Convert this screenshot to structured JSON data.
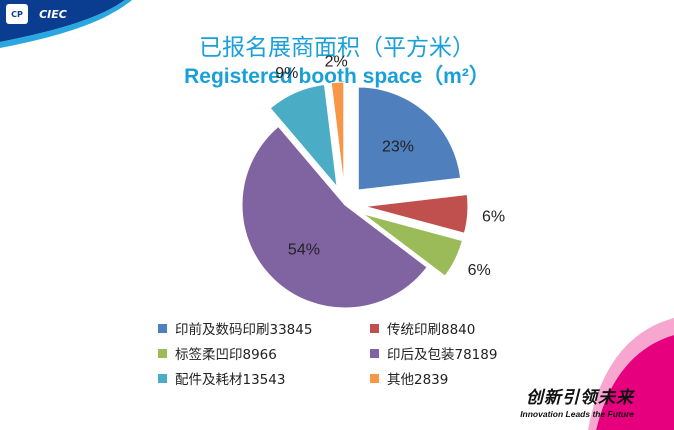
{
  "header": {
    "logo_left": "CP",
    "logo_right": "CIEC"
  },
  "colors": {
    "title": "#1aa0d9",
    "corner_blue": "#0a3d8f",
    "corner_magenta": "#e6007e"
  },
  "chart_data": {
    "type": "pie",
    "title": "已报名展商面积（平方米）",
    "subtitle": "Registered booth space（m²）",
    "slices": [
      {
        "label": "印前及数码印刷",
        "value": 33845,
        "percent_label": "23%",
        "color": "#4f7fbd",
        "exploded": true
      },
      {
        "label": "传统印刷",
        "value": 8840,
        "percent_label": "6%",
        "color": "#c0504d",
        "exploded": true
      },
      {
        "label": "标签柔凹印",
        "value": 8966,
        "percent_label": "6%",
        "color": "#9bbb59",
        "exploded": true
      },
      {
        "label": "印后及包装",
        "value": 78189,
        "percent_label": "54%",
        "color": "#8064a2",
        "exploded": false
      },
      {
        "label": "配件及耗材",
        "value": 13543,
        "percent_label": "9%",
        "color": "#4bacc6",
        "exploded": true
      },
      {
        "label": "其他",
        "value": 2839,
        "percent_label": "2%",
        "color": "#f79646",
        "exploded": true
      }
    ],
    "legend": [
      "印前及数码印刷33845",
      "传统印刷8840",
      "标签柔凹印8966",
      "印后及包装78189",
      "配件及耗材13543",
      "其他2839"
    ],
    "legend_position": "bottom"
  },
  "footer": {
    "slogan_cn": "创新引领未来",
    "slogan_en": "Innovation Leads the Future"
  }
}
